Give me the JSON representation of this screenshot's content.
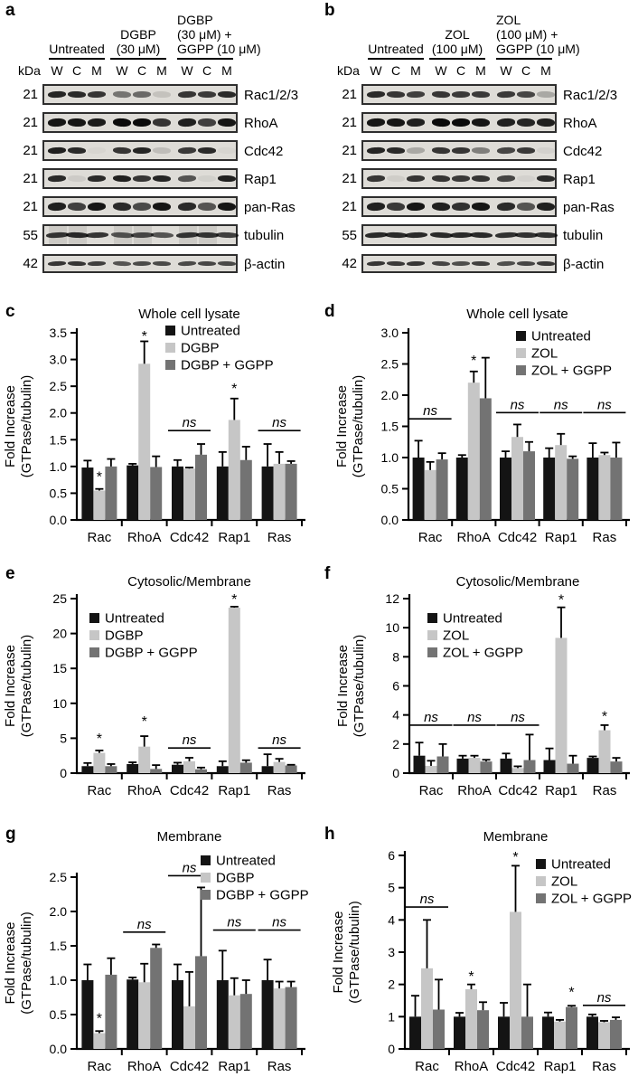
{
  "figure": {
    "background": "#ffffff"
  },
  "colors": {
    "untreated": "#141414",
    "treatment": "#c6c6c6",
    "treatment_ggpp": "#737373",
    "axis": "#000000",
    "blot_background": "#dedcd7"
  },
  "blots": {
    "a": {
      "letter": "a",
      "kda_label": "kDa",
      "lane_letters": [
        "W",
        "C",
        "M",
        "W",
        "C",
        "M",
        "W",
        "C",
        "M"
      ],
      "groups": [
        {
          "lines": [
            "Untreated"
          ],
          "align": "center"
        },
        {
          "lines": [
            "DGBP",
            "(30 μM)"
          ],
          "align": "center"
        },
        {
          "lines": [
            "DGBP",
            "(30 μM) +",
            "GGPP (10 μM)"
          ],
          "align": "left"
        }
      ],
      "rows": [
        {
          "kda": "21",
          "protein": "Rac1/2/3",
          "band_h": 7,
          "bands": [
            0.88,
            0.85,
            0.8,
            0.5,
            0.55,
            0.12,
            0.8,
            0.78,
            0.85
          ]
        },
        {
          "kda": "21",
          "protein": "RhoA",
          "band_h": 9,
          "bands": [
            0.95,
            0.95,
            0.92,
            1.0,
            1.0,
            0.8,
            0.9,
            0.75,
            0.95
          ]
        },
        {
          "kda": "21",
          "protein": "Cdc42",
          "band_h": 7,
          "bands": [
            0.9,
            0.85,
            0.03,
            0.8,
            0.88,
            0.15,
            0.78,
            0.85,
            0.03
          ]
        },
        {
          "kda": "21",
          "protein": "Rap1",
          "band_h": 7,
          "bands": [
            0.85,
            0.08,
            0.85,
            0.9,
            0.8,
            0.88,
            0.65,
            0.06,
            0.9
          ]
        },
        {
          "kda": "21",
          "protein": "pan-Ras",
          "band_h": 9,
          "bands": [
            0.9,
            0.75,
            0.95,
            0.85,
            0.7,
            0.95,
            0.85,
            0.65,
            0.95
          ]
        },
        {
          "kda": "55",
          "protein": "tubulin",
          "band_h": 6,
          "bands": [
            0.8,
            0.85,
            0.8,
            0.65,
            0.7,
            0.65,
            0.8,
            0.8,
            0.75
          ],
          "smears": [
            0,
            1,
            3,
            4,
            6,
            7
          ]
        },
        {
          "kda": "42",
          "protein": "β-actin",
          "band_h": 5,
          "bands": [
            0.8,
            0.8,
            0.75,
            0.65,
            0.7,
            0.7,
            0.7,
            0.72,
            0.7
          ]
        }
      ]
    },
    "b": {
      "letter": "b",
      "kda_label": "kDa",
      "lane_letters": [
        "W",
        "C",
        "M",
        "W",
        "C",
        "M",
        "W",
        "C",
        "M"
      ],
      "groups": [
        {
          "lines": [
            "Untreated"
          ],
          "align": "center"
        },
        {
          "lines": [
            "ZOL",
            "(100 μM)"
          ],
          "align": "center"
        },
        {
          "lines": [
            "ZOL",
            "(100 μM) +",
            "GGPP (10 μM)"
          ],
          "align": "left"
        }
      ],
      "rows": [
        {
          "kda": "21",
          "protein": "Rac1/2/3",
          "band_h": 7,
          "bands": [
            0.85,
            0.8,
            0.75,
            0.8,
            0.78,
            0.78,
            0.78,
            0.72,
            0.25
          ]
        },
        {
          "kda": "21",
          "protein": "RhoA",
          "band_h": 9,
          "bands": [
            0.95,
            0.95,
            0.9,
            1.0,
            1.0,
            0.95,
            0.9,
            0.88,
            0.9
          ]
        },
        {
          "kda": "21",
          "protein": "Cdc42",
          "band_h": 7,
          "bands": [
            0.88,
            0.85,
            0.25,
            0.8,
            0.8,
            0.45,
            0.72,
            0.78,
            0.05
          ]
        },
        {
          "kda": "21",
          "protein": "Rap1",
          "band_h": 7,
          "bands": [
            0.8,
            0.07,
            0.8,
            0.8,
            0.78,
            0.8,
            0.72,
            0.05,
            0.85
          ]
        },
        {
          "kda": "21",
          "protein": "pan-Ras",
          "band_h": 9,
          "bands": [
            0.9,
            0.78,
            0.95,
            0.9,
            0.82,
            0.95,
            0.85,
            0.65,
            0.9
          ]
        },
        {
          "kda": "55",
          "protein": "tubulin",
          "band_h": 6,
          "bands": [
            0.85,
            0.85,
            0.85,
            0.85,
            0.85,
            0.85,
            0.82,
            0.82,
            0.82
          ]
        },
        {
          "kda": "42",
          "protein": "β-actin",
          "band_h": 5,
          "bands": [
            0.8,
            0.78,
            0.8,
            0.72,
            0.68,
            0.75,
            0.68,
            0.72,
            0.78
          ]
        }
      ]
    }
  },
  "chart_data": [
    {
      "letter": "c",
      "type": "bar",
      "title": "Whole cell lysate",
      "ylabel_lines": [
        "Fold Increase",
        "(GTPase/tubulin)"
      ],
      "ymax": 3.5,
      "ystep": 0.5,
      "ydecimals": 1,
      "legend_position": "upper-right",
      "categories": [
        "Rac",
        "RhoA",
        "Cdc42",
        "Rap1",
        "Ras"
      ],
      "series": [
        {
          "name": "Untreated",
          "color": "#141414",
          "values": [
            0.98,
            1.02,
            1.0,
            1.0,
            1.0
          ],
          "errors": [
            0.13,
            0.03,
            0.12,
            0.27,
            0.42
          ]
        },
        {
          "name": "DGBP",
          "color": "#c6c6c6",
          "values": [
            0.55,
            2.92,
            0.96,
            1.87,
            1.05
          ],
          "errors": [
            0.03,
            0.42,
            0.02,
            0.4,
            0.22
          ]
        },
        {
          "name": "DGBP + GGPP",
          "color": "#737373",
          "values": [
            1.0,
            0.99,
            1.22,
            1.12,
            1.05
          ],
          "errors": [
            0.14,
            0.2,
            0.2,
            0.25,
            0.05
          ]
        }
      ],
      "annotations": [
        {
          "cat": 0,
          "type": "star",
          "bar": 1,
          "y": 0.8
        },
        {
          "cat": 1,
          "type": "star",
          "bar": 1,
          "y": 3.43
        },
        {
          "cat": 2,
          "type": "ns",
          "y": 1.67
        },
        {
          "cat": 3,
          "type": "star",
          "bar": 1,
          "y": 2.45
        },
        {
          "cat": 4,
          "type": "ns",
          "y": 1.67
        }
      ]
    },
    {
      "letter": "d",
      "type": "bar",
      "title": "Whole cell lysate",
      "ylabel_lines": [
        "Fold Increase",
        "(GTPase/tubulin)"
      ],
      "ymax": 3.0,
      "ystep": 0.5,
      "ydecimals": 1,
      "legend_position": "upper-right",
      "categories": [
        "Rac",
        "RhoA",
        "Cdc42",
        "Rap1",
        "Ras"
      ],
      "series": [
        {
          "name": "Untreated",
          "color": "#141414",
          "values": [
            1.0,
            1.0,
            1.0,
            1.0,
            1.0
          ],
          "errors": [
            0.27,
            0.04,
            0.1,
            0.15,
            0.23
          ]
        },
        {
          "name": "ZOL",
          "color": "#c6c6c6",
          "values": [
            0.8,
            2.2,
            1.33,
            1.2,
            1.04
          ],
          "errors": [
            0.13,
            0.18,
            0.2,
            0.18,
            0.04
          ]
        },
        {
          "name": "ZOL + GGPP",
          "color": "#737373",
          "values": [
            0.97,
            1.95,
            1.1,
            0.98,
            1.0
          ],
          "errors": [
            0.1,
            0.65,
            0.15,
            0.04,
            0.24
          ]
        }
      ],
      "annotations": [
        {
          "cat": 0,
          "type": "ns",
          "y": 1.62
        },
        {
          "cat": 1,
          "type": "star",
          "bar": 1,
          "y": 2.55
        },
        {
          "cat": 2,
          "type": "ns",
          "y": 1.72
        },
        {
          "cat": 3,
          "type": "ns",
          "y": 1.72
        },
        {
          "cat": 4,
          "type": "ns",
          "y": 1.72
        }
      ]
    },
    {
      "letter": "e",
      "type": "bar",
      "title": "Cytosolic/Membrane",
      "ylabel_lines": [
        "Fold Increase",
        "(GTPase/tubulin)"
      ],
      "ymax": 25,
      "ystep": 5,
      "ydecimals": 0,
      "legend_position": "upper-left",
      "categories": [
        "Rac",
        "RhoA",
        "Cdc42",
        "Rap1",
        "Ras"
      ],
      "series": [
        {
          "name": "Untreated",
          "color": "#141414",
          "values": [
            1.0,
            1.3,
            1.2,
            1.0,
            1.0
          ],
          "errors": [
            0.45,
            0.25,
            0.3,
            0.7,
            1.7
          ]
        },
        {
          "name": "DGBP",
          "color": "#c6c6c6",
          "values": [
            2.9,
            3.8,
            1.7,
            23.7,
            1.6
          ],
          "errors": [
            0.35,
            1.5,
            0.5,
            0.15,
            0.45
          ]
        },
        {
          "name": "DGBP + GGPP",
          "color": "#737373",
          "values": [
            1.0,
            0.6,
            0.55,
            1.5,
            1.1
          ],
          "errors": [
            0.3,
            0.55,
            0.25,
            0.35,
            0.1
          ]
        }
      ],
      "annotations": [
        {
          "cat": 0,
          "type": "star",
          "bar": 1,
          "y": 4.9
        },
        {
          "cat": 1,
          "type": "star",
          "bar": 1,
          "y": 7.4
        },
        {
          "cat": 2,
          "type": "ns",
          "y": 3.6
        },
        {
          "cat": 3,
          "type": "star",
          "bar": 1,
          "y": 24.9
        },
        {
          "cat": 4,
          "type": "ns",
          "y": 3.6
        }
      ]
    },
    {
      "letter": "f",
      "type": "bar",
      "title": "Cytosolic/Membrane",
      "ylabel_lines": [
        "Fold Increase",
        "(GTPase/tubulin)"
      ],
      "ymax": 12,
      "ystep": 2,
      "ydecimals": 0,
      "legend_position": "upper-left",
      "categories": [
        "Rac",
        "RhoA",
        "Cdc42",
        "Rap1",
        "Ras"
      ],
      "series": [
        {
          "name": "Untreated",
          "color": "#141414",
          "values": [
            1.2,
            1.0,
            1.0,
            0.9,
            1.05
          ],
          "errors": [
            0.9,
            0.2,
            0.35,
            0.8,
            0.1
          ]
        },
        {
          "name": "ZOL",
          "color": "#c6c6c6",
          "values": [
            0.5,
            1.05,
            0.35,
            9.3,
            2.95
          ],
          "errors": [
            0.35,
            0.15,
            0.12,
            2.1,
            0.35
          ]
        },
        {
          "name": "ZOL + GGPP",
          "color": "#737373",
          "values": [
            1.15,
            0.8,
            0.9,
            0.65,
            0.8
          ],
          "errors": [
            0.85,
            0.12,
            1.75,
            0.55,
            0.25
          ]
        }
      ],
      "annotations": [
        {
          "cat": 0,
          "type": "ns",
          "y": 3.3
        },
        {
          "cat": 1,
          "type": "ns",
          "y": 3.3
        },
        {
          "cat": 2,
          "type": "ns",
          "y": 3.3
        },
        {
          "cat": 3,
          "type": "star",
          "bar": 1,
          "y": 11.9
        },
        {
          "cat": 4,
          "type": "star",
          "bar": 1,
          "y": 3.9
        }
      ]
    },
    {
      "letter": "g",
      "type": "bar",
      "title": "Membrane",
      "ylabel_lines": [
        "Fold Increase",
        "(GTPase/tubulin)"
      ],
      "ymax": 2.5,
      "ystep": 0.5,
      "ydecimals": 1,
      "legend_position": "upper-right",
      "categories": [
        "Rac",
        "RhoA",
        "Cdc42",
        "Rap1",
        "Ras"
      ],
      "series": [
        {
          "name": "Untreated",
          "color": "#141414",
          "values": [
            1.0,
            1.01,
            1.0,
            1.0,
            1.0
          ],
          "errors": [
            0.23,
            0.03,
            0.23,
            0.43,
            0.3
          ]
        },
        {
          "name": "DGBP",
          "color": "#c6c6c6",
          "values": [
            0.23,
            0.97,
            0.62,
            0.78,
            0.88
          ],
          "errors": [
            0.03,
            0.27,
            0.5,
            0.25,
            0.1
          ]
        },
        {
          "name": "DGBP + GGPP",
          "color": "#737373",
          "values": [
            1.08,
            1.47,
            1.35,
            0.8,
            0.9
          ],
          "errors": [
            0.24,
            0.05,
            1.0,
            0.2,
            0.08
          ]
        }
      ],
      "annotations": [
        {
          "cat": 0,
          "type": "star",
          "bar": 1,
          "y": 0.44
        },
        {
          "cat": 1,
          "type": "ns",
          "y": 1.7
        },
        {
          "cat": 2,
          "type": "ns",
          "y": 2.52
        },
        {
          "cat": 3,
          "type": "ns",
          "y": 1.73
        },
        {
          "cat": 4,
          "type": "ns",
          "y": 1.73
        }
      ]
    },
    {
      "letter": "h",
      "type": "bar",
      "title": "Membrane",
      "ylabel_lines": [
        "Fold Increase",
        "(GTPase/tubulin)"
      ],
      "ymax": 6,
      "ystep": 1,
      "ydecimals": 0,
      "legend_position": "upper-right",
      "categories": [
        "Rac",
        "RhoA",
        "Cdc42",
        "Rap1",
        "Ras"
      ],
      "series": [
        {
          "name": "Untreated",
          "color": "#141414",
          "values": [
            1.0,
            1.0,
            1.0,
            1.0,
            1.0
          ],
          "errors": [
            0.65,
            0.12,
            0.43,
            0.13,
            0.07
          ]
        },
        {
          "name": "ZOL",
          "color": "#c6c6c6",
          "values": [
            2.5,
            1.85,
            4.25,
            0.85,
            0.83
          ],
          "errors": [
            1.5,
            0.15,
            1.43,
            0.05,
            0.04
          ]
        },
        {
          "name": "ZOL + GGPP",
          "color": "#737373",
          "values": [
            1.22,
            1.2,
            1.0,
            1.3,
            0.9
          ],
          "errors": [
            0.93,
            0.25,
            1.0,
            0.04,
            0.08
          ]
        }
      ],
      "annotations": [
        {
          "cat": 0,
          "type": "ns",
          "y": 4.4
        },
        {
          "cat": 1,
          "type": "star",
          "bar": 1,
          "y": 2.25
        },
        {
          "cat": 2,
          "type": "star",
          "bar": 1,
          "y": 5.95
        },
        {
          "cat": 3,
          "type": "star",
          "bar": 2,
          "y": 1.75
        },
        {
          "cat": 4,
          "type": "ns",
          "y": 1.35
        }
      ]
    }
  ]
}
